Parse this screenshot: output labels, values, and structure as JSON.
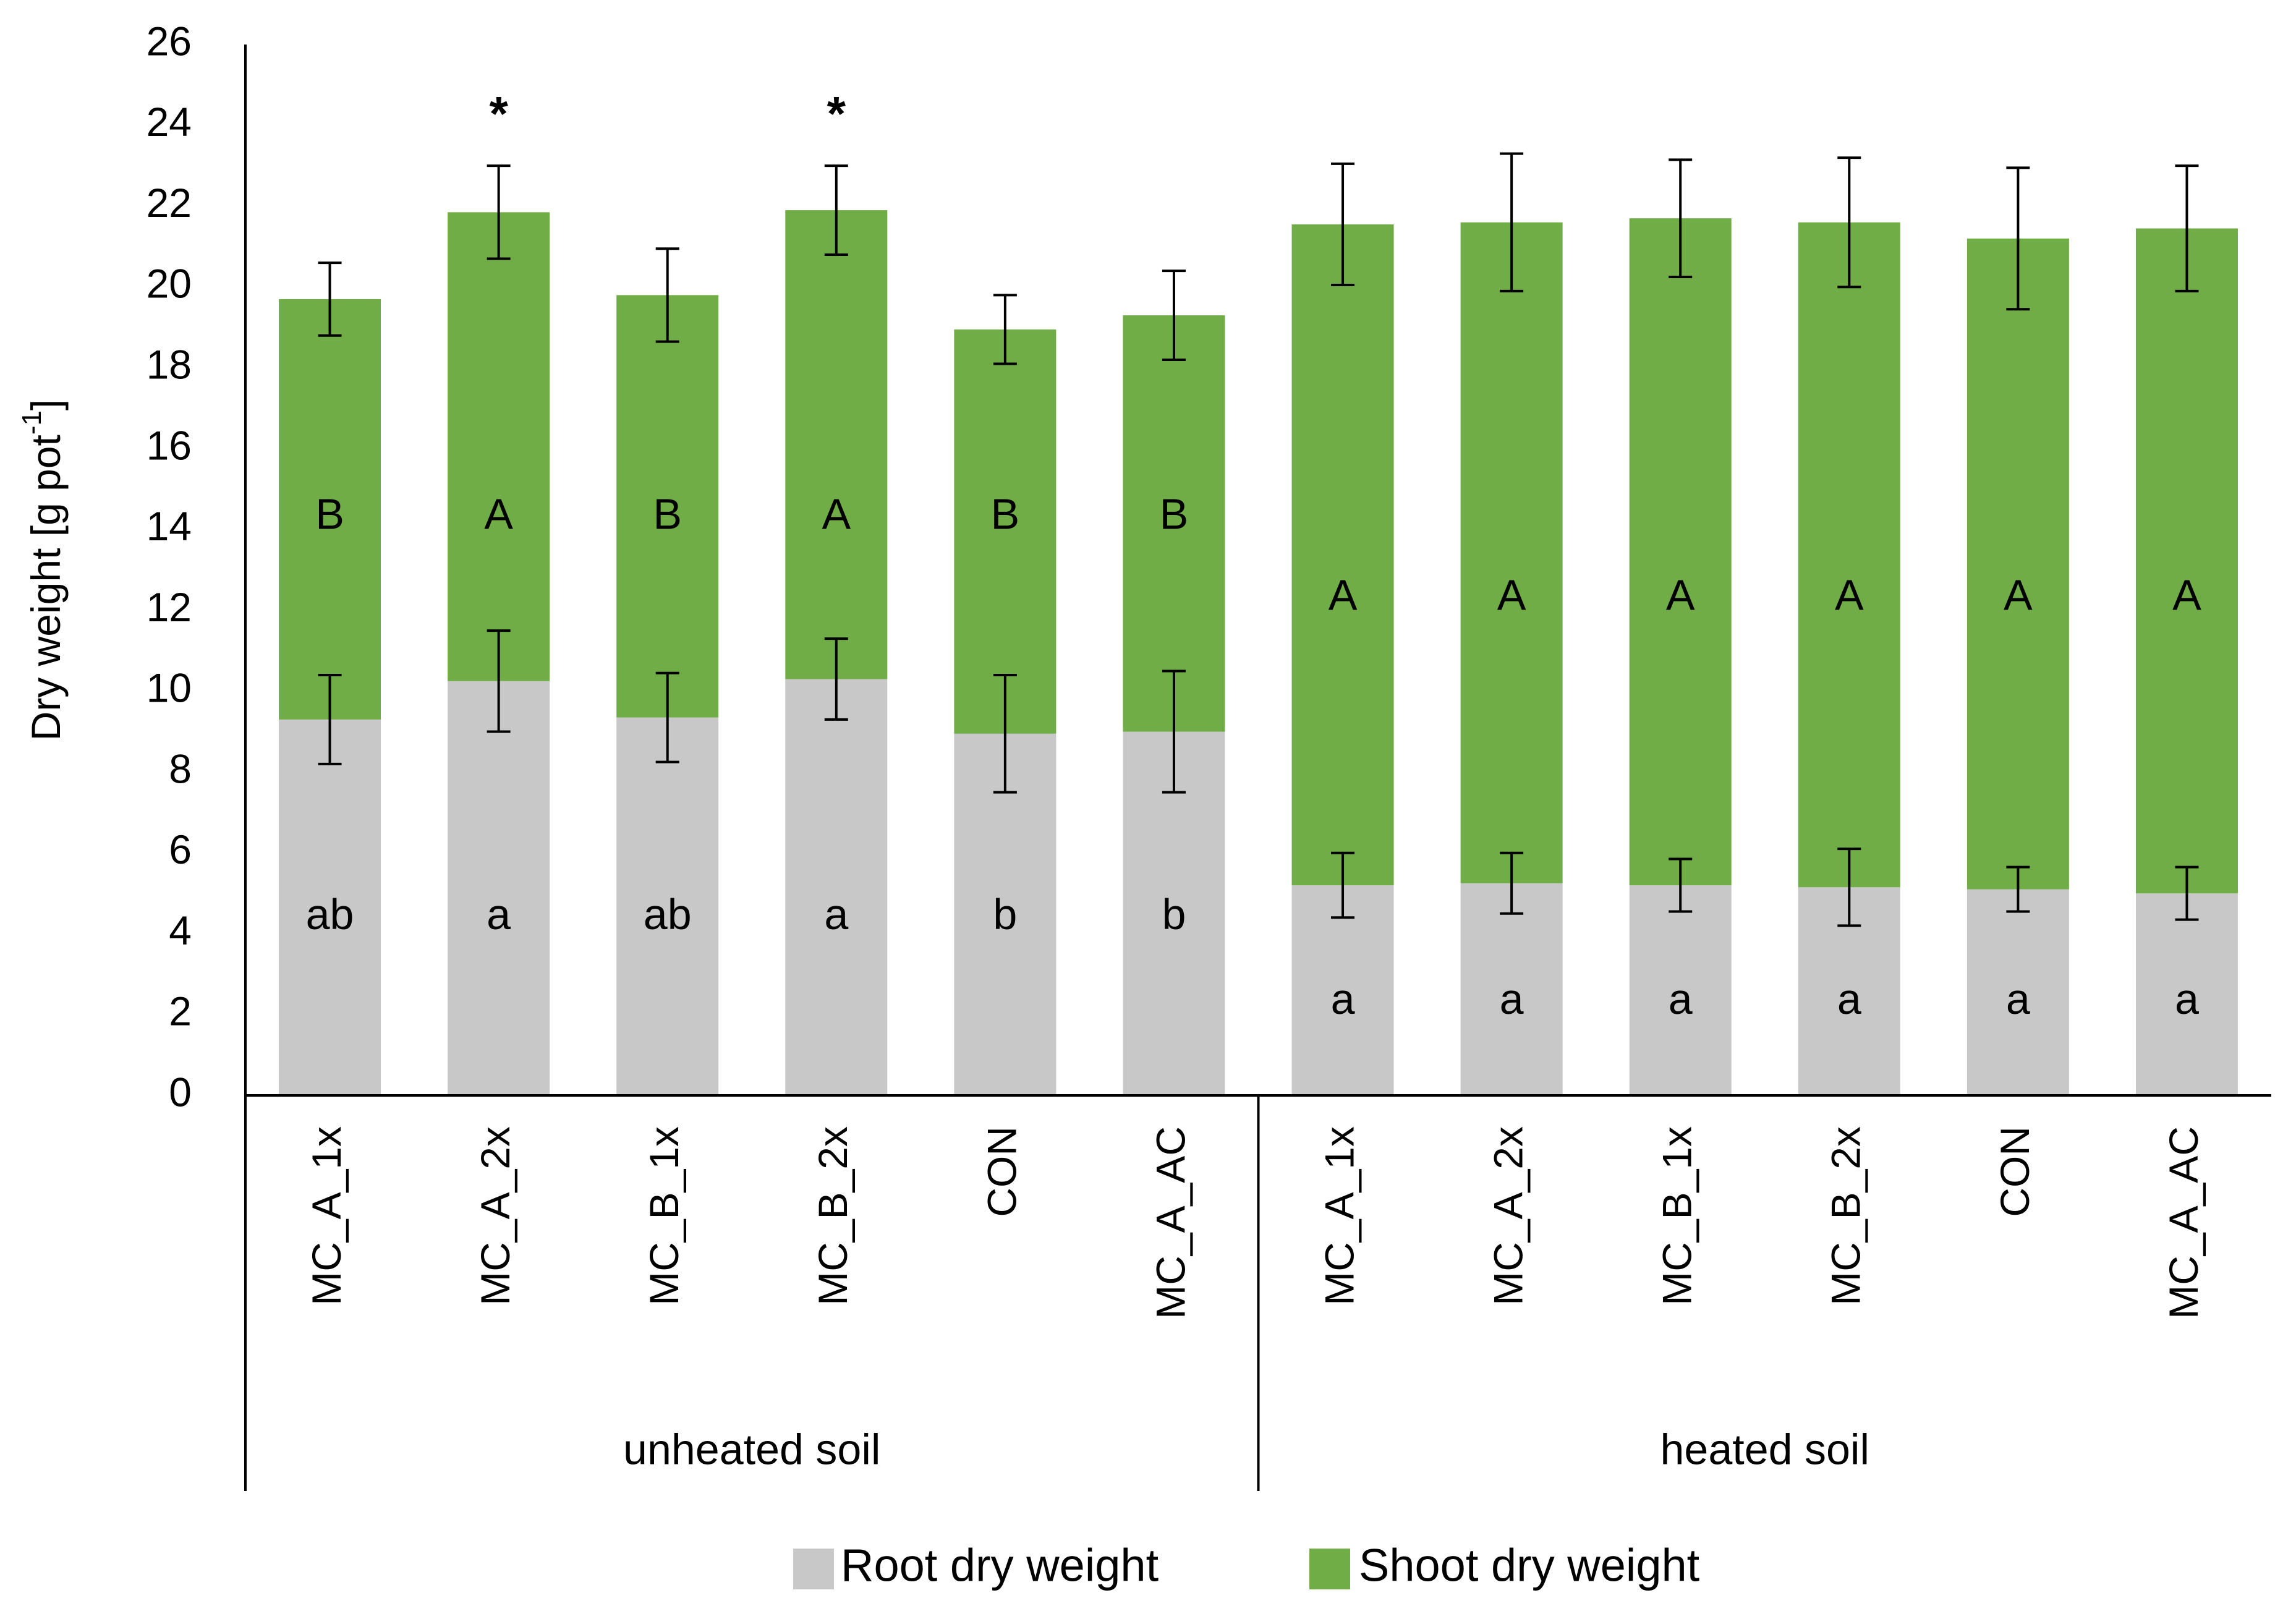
{
  "chart_data": {
    "type": "bar",
    "stacked": true,
    "ylabel": "Dry weight [g pot",
    "ylabel_sup": "-1",
    "ylabel_end": "]",
    "ylim": [
      0,
      26
    ],
    "yticks": [
      "0",
      "2",
      "4",
      "6",
      "8",
      "10",
      "12",
      "14",
      "16",
      "18",
      "20",
      "22",
      "24",
      "26"
    ],
    "grid": false,
    "legend_position": "bottom",
    "groups": [
      {
        "label": "unheated soil",
        "start": 0,
        "count": 6
      },
      {
        "label": "heated soil",
        "start": 6,
        "count": 6
      }
    ],
    "categories": [
      "MC_A_1x",
      "MC_A_2x",
      "MC_B_1x",
      "MC_B_2x",
      "CON",
      "MC_A_AC",
      "MC_A_1x",
      "MC_A_2x",
      "MC_B_1x",
      "MC_B_2x",
      "CON",
      "MC_A_AC"
    ],
    "series": [
      {
        "name": "Root dry weight",
        "color": "#c8c8c8",
        "values": [
          9.3,
          10.25,
          9.35,
          10.3,
          8.95,
          9.0,
          5.2,
          5.25,
          5.2,
          5.15,
          5.1,
          5.0
        ],
        "error": [
          1.1,
          1.25,
          1.1,
          1.0,
          1.45,
          1.5,
          0.8,
          0.75,
          0.65,
          0.95,
          0.55,
          0.65
        ],
        "letters": [
          "ab",
          "a",
          "ab",
          "a",
          "b",
          "b",
          "a",
          "a",
          "a",
          "a",
          "a",
          "a"
        ]
      },
      {
        "name": "Shoot dry weight",
        "color": "#70ad47",
        "values": [
          10.4,
          11.6,
          10.45,
          11.6,
          10.0,
          10.3,
          16.35,
          16.35,
          16.5,
          16.45,
          16.1,
          16.45
        ],
        "totals": [
          19.7,
          21.85,
          19.8,
          21.9,
          18.95,
          19.3,
          21.55,
          21.6,
          21.7,
          21.6,
          21.2,
          21.45
        ],
        "error": [
          0.9,
          1.15,
          1.15,
          1.1,
          0.85,
          1.1,
          1.5,
          1.7,
          1.45,
          1.6,
          1.75,
          1.55
        ],
        "letters": [
          "B",
          "A",
          "B",
          "A",
          "B",
          "B",
          "A",
          "A",
          "A",
          "A",
          "A",
          "A"
        ]
      }
    ],
    "significance": [
      "*",
      "*"
    ],
    "significance_index": [
      1,
      3
    ]
  }
}
